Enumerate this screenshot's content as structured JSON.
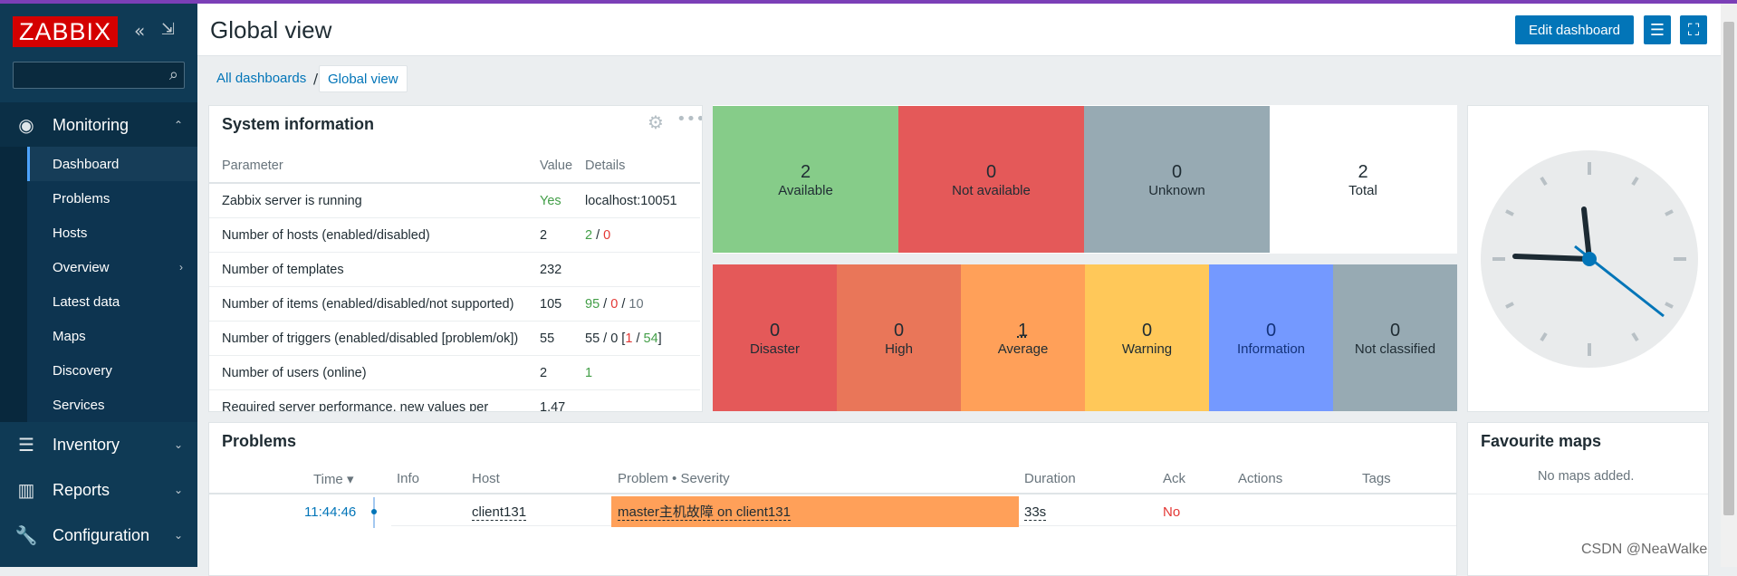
{
  "app": {
    "logo": "ZABBIX"
  },
  "header": {
    "title": "Global view",
    "edit_label": "Edit dashboard"
  },
  "search": {
    "placeholder": ""
  },
  "sidebar": {
    "monitoring": "Monitoring",
    "items": [
      "Dashboard",
      "Problems",
      "Hosts",
      "Overview",
      "Latest data",
      "Maps",
      "Discovery",
      "Services"
    ],
    "inventory": "Inventory",
    "reports": "Reports",
    "configuration": "Configuration"
  },
  "breadcrumb": {
    "root": "All dashboards",
    "sep": "/",
    "current": "Global view"
  },
  "system_info": {
    "title": "System information",
    "headers": {
      "parameter": "Parameter",
      "value": "Value",
      "details": "Details"
    },
    "rows": [
      {
        "p": "Zabbix server is running",
        "v": "Yes",
        "d": "localhost:10051"
      },
      {
        "p": "Number of hosts (enabled/disabled)",
        "v": "2",
        "d1": "2",
        "s1": " / ",
        "d2": "0"
      },
      {
        "p": "Number of templates",
        "v": "232"
      },
      {
        "p": "Number of items (enabled/disabled/not supported)",
        "v": "105",
        "d1": "95",
        "s1": " / ",
        "d2": "0",
        "s2": " / ",
        "d3": "10"
      },
      {
        "p": "Number of triggers (enabled/disabled [problem/ok])",
        "v": "55",
        "d0": "55 / 0 [",
        "d1": "1",
        "s1": " / ",
        "d2": "54",
        "s2": "]"
      },
      {
        "p": "Number of users (online)",
        "v": "2",
        "d1": "1"
      },
      {
        "p": "Required server performance, new values per",
        "v": "1.47"
      }
    ]
  },
  "host_availability": [
    {
      "count": "2",
      "label": "Available",
      "color": "#86cc89"
    },
    {
      "count": "0",
      "label": "Not available",
      "color": "#e45959"
    },
    {
      "count": "0",
      "label": "Unknown",
      "color": "#97aab3"
    },
    {
      "count": "2",
      "label": "Total",
      "color": "#ffffff"
    }
  ],
  "problems_by_severity": [
    {
      "count": "0",
      "label": "Disaster",
      "color": "#e45959"
    },
    {
      "count": "0",
      "label": "High",
      "color": "#e97659"
    },
    {
      "count": "1",
      "label": "Average",
      "color": "#ffa059"
    },
    {
      "count": "0",
      "label": "Warning",
      "color": "#ffc859"
    },
    {
      "count": "0",
      "label": "Information",
      "color": "#7499ff"
    },
    {
      "count": "0",
      "label": "Not classified",
      "color": "#97aab3"
    }
  ],
  "problems": {
    "title": "Problems",
    "headers": {
      "time": "Time ▾",
      "info": "Info",
      "host": "Host",
      "problem": "Problem • Severity",
      "duration": "Duration",
      "ack": "Ack",
      "actions": "Actions",
      "tags": "Tags"
    },
    "rows": [
      {
        "time": "11:44:46",
        "host": "client131",
        "problem": "master主机故障 on client131",
        "duration": "33s",
        "ack": "No"
      }
    ]
  },
  "favourite_maps": {
    "title": "Favourite maps",
    "empty": "No maps added."
  },
  "watermark": "CSDN @NeaWalke"
}
